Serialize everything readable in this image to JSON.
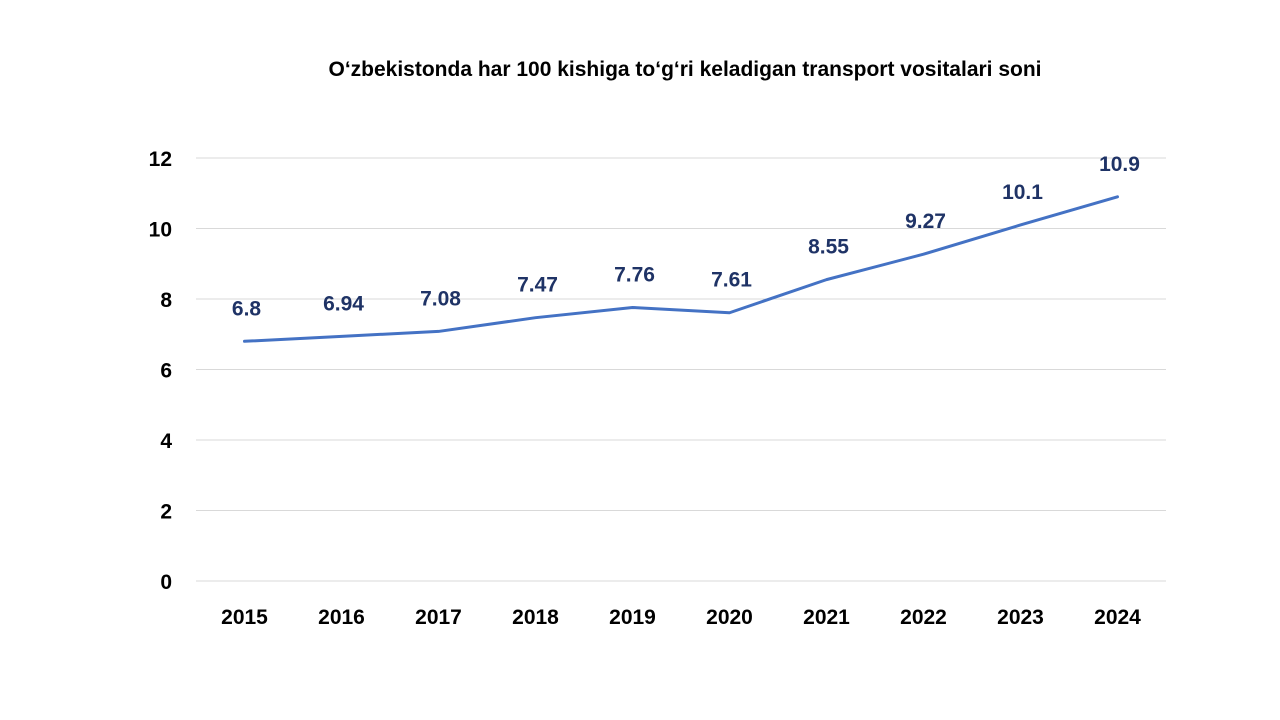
{
  "chart_data": {
    "type": "line",
    "title": "O‘zbekistonda har 100 kishiga to‘g‘ri keladigan transport vositalari soni",
    "xlabel": "",
    "ylabel": "",
    "categories": [
      "2015",
      "2016",
      "2017",
      "2018",
      "2019",
      "2020",
      "2021",
      "2022",
      "2023",
      "2024"
    ],
    "values": [
      6.8,
      6.94,
      7.08,
      7.47,
      7.76,
      7.61,
      8.55,
      9.27,
      10.1,
      10.9
    ],
    "data_labels": [
      "6.8",
      "6.94",
      "7.08",
      "7.47",
      "7.76",
      "7.61",
      "8.55",
      "9.27",
      "10.1",
      "10.9"
    ],
    "ylim": [
      0,
      12
    ],
    "yticks": [
      "0",
      "2",
      "4",
      "6",
      "8",
      "10",
      "12"
    ],
    "grid": true,
    "legend": "none",
    "colors": {
      "line": "#4472c4",
      "data_labels": "#1f3366",
      "grid": "#d9d9d9"
    }
  }
}
